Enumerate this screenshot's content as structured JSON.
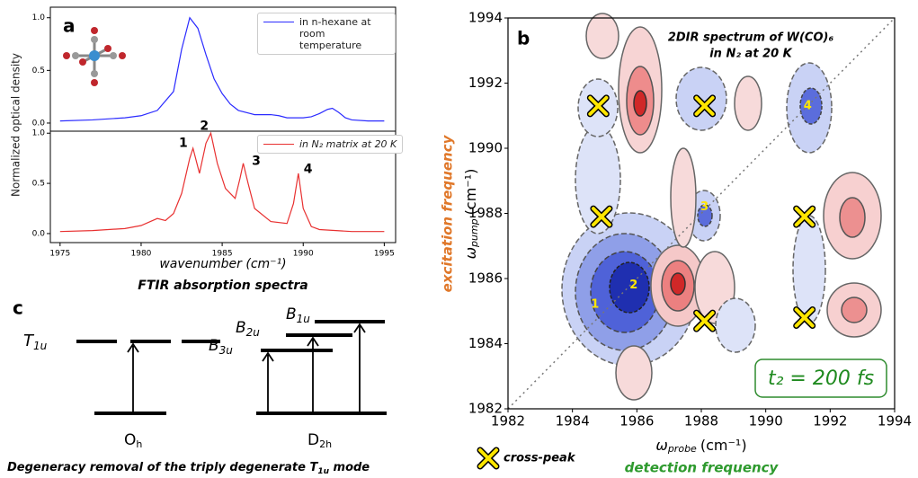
{
  "chart_data": [
    {
      "type": "line",
      "panel_label": "a",
      "ylabel": "Normalized optical density",
      "xlim": [
        1974.4,
        1995.7
      ],
      "ylim": [
        -0.077,
        1.1
      ],
      "yticks": [
        {
          "value": 0,
          "label": "0.0"
        },
        {
          "value": 0.5,
          "label": "0.5"
        },
        {
          "value": 1,
          "label": "1.0"
        }
      ],
      "x": [
        1975,
        1977,
        1979,
        1980,
        1981,
        1982,
        1982.5,
        1983,
        1983.5,
        1984,
        1984.5,
        1985,
        1985.5,
        1986,
        1987,
        1987.5,
        1988,
        1988.5,
        1989,
        1990,
        1990.5,
        1991,
        1991.5,
        1991.8,
        1992.2,
        1992.6,
        1993,
        1994,
        1995
      ],
      "series": [
        {
          "name": "in n-hexane at room temperature",
          "color": "#2b2bff",
          "values": [
            0.02,
            0.03,
            0.05,
            0.07,
            0.12,
            0.3,
            0.7,
            1.0,
            0.9,
            0.65,
            0.42,
            0.28,
            0.18,
            0.12,
            0.08,
            0.08,
            0.08,
            0.07,
            0.05,
            0.05,
            0.06,
            0.09,
            0.13,
            0.14,
            0.1,
            0.05,
            0.03,
            0.02,
            0.02
          ]
        }
      ]
    },
    {
      "type": "line",
      "xlabel": "wavenumber (cm⁻¹)",
      "caption": "FTIR absorption spectra",
      "xlim": [
        1974.4,
        1995.7
      ],
      "ylim": [
        -0.09,
        1.02
      ],
      "xticks": [
        1975,
        1980,
        1985,
        1990,
        1995
      ],
      "yticks": [
        {
          "value": 0,
          "label": "0.0"
        },
        {
          "value": 0.5,
          "label": "0.5"
        },
        {
          "value": 1,
          "label": "1.0"
        }
      ],
      "x": [
        1975,
        1977,
        1979,
        1980,
        1981,
        1981.5,
        1982,
        1982.5,
        1983,
        1983.2,
        1983.6,
        1984,
        1984.3,
        1984.7,
        1985.2,
        1985.8,
        1986.1,
        1986.3,
        1986.6,
        1987,
        1988,
        1989,
        1989.4,
        1989.7,
        1990,
        1990.5,
        1991,
        1993,
        1995
      ],
      "series": [
        {
          "name": "in N₂ matrix at 20 K",
          "color": "#e83030",
          "values": [
            0.02,
            0.03,
            0.05,
            0.08,
            0.15,
            0.13,
            0.2,
            0.4,
            0.75,
            0.85,
            0.6,
            0.9,
            1.0,
            0.7,
            0.45,
            0.35,
            0.55,
            0.7,
            0.5,
            0.25,
            0.12,
            0.1,
            0.3,
            0.6,
            0.25,
            0.07,
            0.04,
            0.02,
            0.02
          ]
        }
      ],
      "annotations": [
        {
          "text": "1",
          "x": 1982.6,
          "y": 0.9
        },
        {
          "text": "2",
          "x": 1983.9,
          "y": 1.07
        },
        {
          "text": "3",
          "x": 1987.1,
          "y": 0.72
        },
        {
          "text": "4",
          "x": 1990.3,
          "y": 0.64
        }
      ]
    },
    {
      "type": "scatter",
      "panel_label": "b",
      "title": "2DIR spectrum of W(CO)₆",
      "subtitle": "in N₂ at 20 K",
      "xlabel": {
        "symbol": "ω",
        "sub": "probe",
        "unit": "(cm⁻¹)"
      },
      "ylabel": {
        "symbol": "ω",
        "sub": "pump",
        "unit": "(cm⁻¹)"
      },
      "x_note": "detection frequency",
      "y_note": "excitation frequency",
      "delay": "t₂ = 200 fs",
      "xlim": [
        1982,
        1994
      ],
      "ylim": [
        1982,
        1994
      ],
      "xticks": [
        1982,
        1984,
        1986,
        1988,
        1990,
        1992,
        1994
      ],
      "yticks": [
        1982,
        1984,
        1986,
        1988,
        1990,
        1992,
        1994
      ],
      "series": [
        {
          "name": "cross-peak",
          "color": "#ffe600",
          "x": [
            1984.8,
            1988.1,
            1984.9,
            1991.2,
            1988.1,
            1991.2
          ],
          "values": [
            1991.3,
            1991.3,
            1987.9,
            1987.9,
            1984.7,
            1984.8
          ]
        }
      ],
      "annotations": [
        {
          "text": "1",
          "x": 1984.7,
          "y": 1985.2
        },
        {
          "text": "2",
          "x": 1985.9,
          "y": 1985.8
        },
        {
          "text": "3",
          "x": 1988.1,
          "y": 1988.2
        },
        {
          "text": "4",
          "x": 1991.3,
          "y": 1991.3
        }
      ]
    }
  ],
  "panel_c": {
    "label": "c",
    "t1u": {
      "main": "T",
      "sub": "1u"
    },
    "b3u": {
      "main": "B",
      "sub": "3u"
    },
    "b2u": {
      "main": "B",
      "sub": "2u"
    },
    "b1u": {
      "main": "B",
      "sub": "1u"
    },
    "oh": {
      "main": "O",
      "sub": "h"
    },
    "d2h": {
      "main": "D",
      "sub": "2h"
    },
    "caption": {
      "text": "Degeneracy removal of the triply degenerate ",
      "main": "T",
      "sub": "1u",
      "end": " mode"
    }
  }
}
